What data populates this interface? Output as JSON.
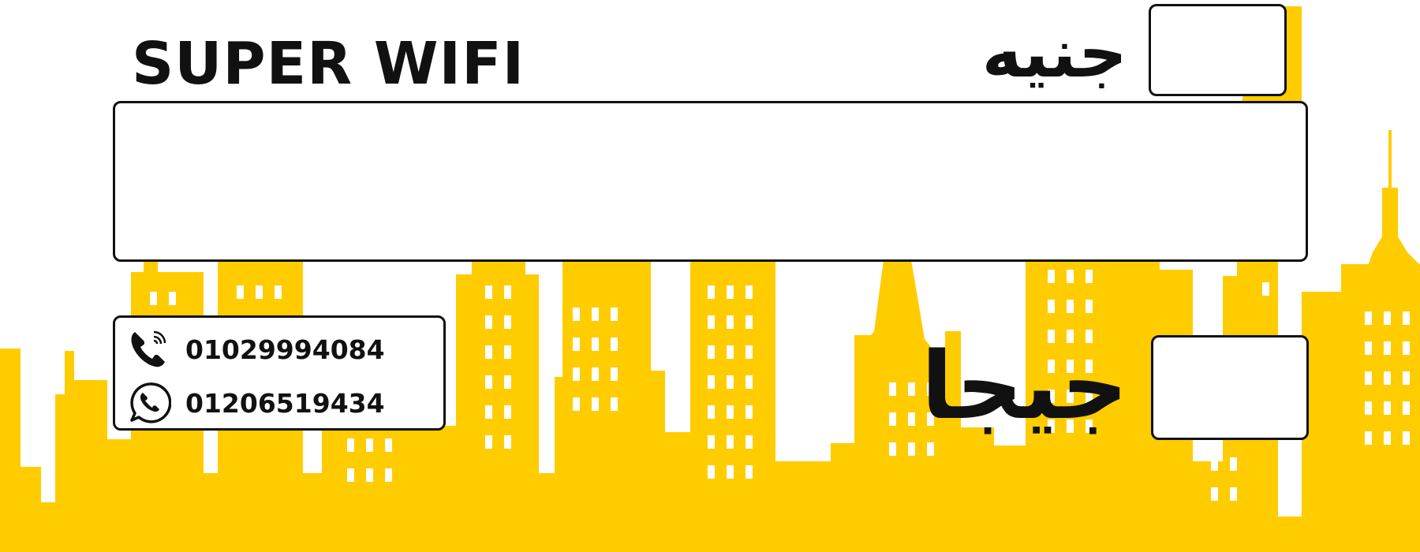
{
  "brand": "SUPER WIFI",
  "labels": {
    "currency": "جنيه",
    "data_unit": "جيجا"
  },
  "contacts": [
    {
      "icon": "phone-call-icon",
      "number": "01029994084"
    },
    {
      "icon": "whatsapp-icon",
      "number": "01206519434"
    }
  ],
  "colors": {
    "skyline": "#FFCC00",
    "text": "#111111",
    "background": "#FFFFFF"
  }
}
